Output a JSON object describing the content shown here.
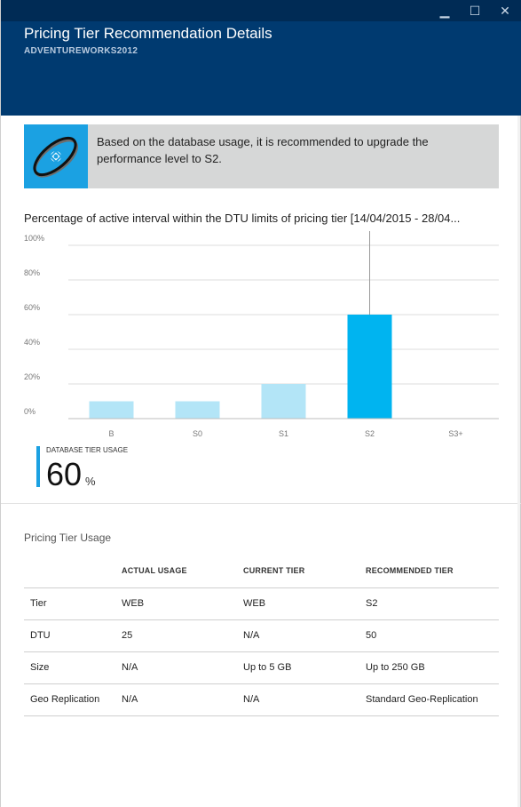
{
  "window": {
    "minimize_glyph": "▁",
    "maximize_glyph": "☐",
    "close_glyph": "✕"
  },
  "header": {
    "title": "Pricing Tier Recommendation Details",
    "subtitle": "ADVENTUREWORKS2012",
    "background_color": "#003a70"
  },
  "recommendation": {
    "icon": "database-recommendation-icon",
    "text": "Based on the database usage, it is recommended to upgrade the performance level to S2.",
    "accent_color": "#1ba1e2"
  },
  "chart_data": {
    "type": "bar",
    "title": "Percentage of active interval within the DTU limits of pricing tier [14/04/2015 - 28/04...",
    "categories": [
      "B",
      "S0",
      "S1",
      "S2",
      "S3+"
    ],
    "values": [
      10,
      10,
      20,
      60,
      0
    ],
    "highlighted": "S2",
    "yticks": [
      "0%",
      "20%",
      "40%",
      "60%",
      "80%",
      "100%"
    ],
    "ylim": [
      0,
      100
    ],
    "grid": true,
    "bar_color": "#b3e5f7",
    "highlight_color": "#00b4f0"
  },
  "usage": {
    "label": "DATABASE TIER USAGE",
    "value": "60",
    "unit": "%"
  },
  "pricing_table": {
    "title": "Pricing Tier Usage",
    "headers": [
      "",
      "ACTUAL USAGE",
      "CURRENT TIER",
      "RECOMMENDED TIER"
    ],
    "rows": [
      [
        "Tier",
        "WEB",
        "WEB",
        "S2"
      ],
      [
        "DTU",
        "25",
        "N/A",
        "50"
      ],
      [
        "Size",
        "N/A",
        "Up to 5 GB",
        "Up to 250 GB"
      ],
      [
        "Geo Replication",
        "N/A",
        "N/A",
        "Standard Geo-Replication"
      ]
    ]
  }
}
